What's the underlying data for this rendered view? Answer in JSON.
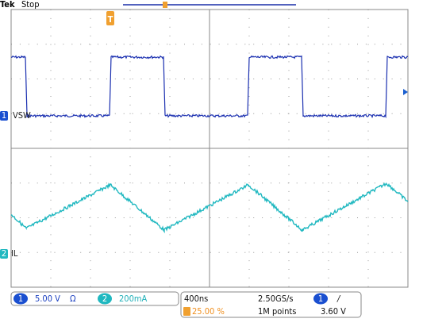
{
  "header": {
    "brand": "Tek",
    "status": "Stop"
  },
  "channels": [
    {
      "number": "1",
      "label": "VSW",
      "scale": "5.00 V",
      "coupling": "Ω"
    },
    {
      "number": "2",
      "label": "IL",
      "scale": "200mA"
    }
  ],
  "horizontal": {
    "time_scale": "400ns",
    "sample_rate": "2.50GS/s",
    "record_length": "1M points",
    "trigger_position": "25.00 %",
    "trigger_marker": "T"
  },
  "trigger": {
    "source": "1",
    "slope": "/",
    "level": "3.60 V"
  }
}
